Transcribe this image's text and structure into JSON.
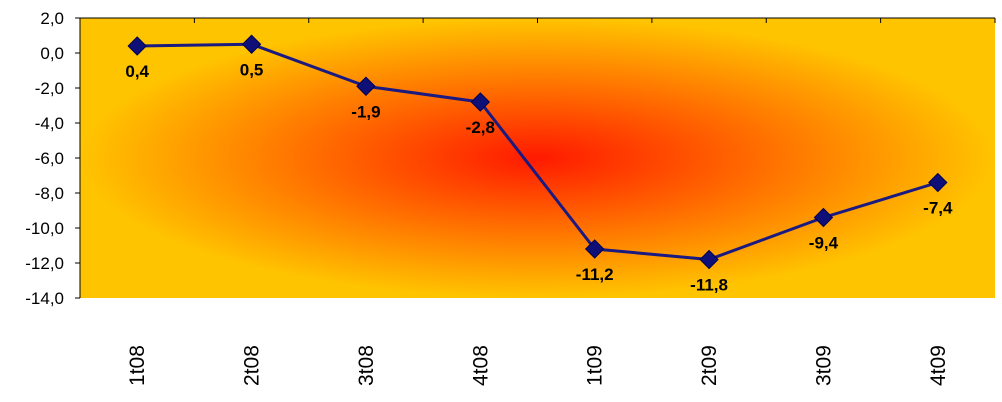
{
  "chart_data": {
    "type": "line",
    "categories": [
      "1t08",
      "2t08",
      "3t08",
      "4t08",
      "1t09",
      "2t09",
      "3t09",
      "4t09"
    ],
    "series": [
      {
        "values": [
          0.4,
          0.5,
          -1.9,
          -2.8,
          -11.2,
          -11.8,
          -9.4,
          -7.4
        ]
      }
    ],
    "data_labels": [
      "0,4",
      "0,5",
      "-1,9",
      "-2,8",
      "-11,2",
      "-11,8",
      "-9,4",
      "-7,4"
    ],
    "y_ticks": [
      2.0,
      0.0,
      -2.0,
      -4.0,
      -6.0,
      -8.0,
      -10.0,
      -12.0,
      -14.0
    ],
    "y_tick_labels": [
      "2,0",
      "0,0",
      "-2,0",
      "-4,0",
      "-6,0",
      "-8,0",
      "-10,0",
      "-12,0",
      "-14,0"
    ],
    "ylim": [
      -14,
      2
    ],
    "title": "",
    "xlabel": "",
    "ylabel": "",
    "grid": false,
    "legend": "none",
    "marker": "diamond",
    "colors": {
      "line": "#1a1a80",
      "marker": "#0f0f78",
      "background_center": "#ff1a00",
      "background_edge": "#ffc400"
    }
  }
}
